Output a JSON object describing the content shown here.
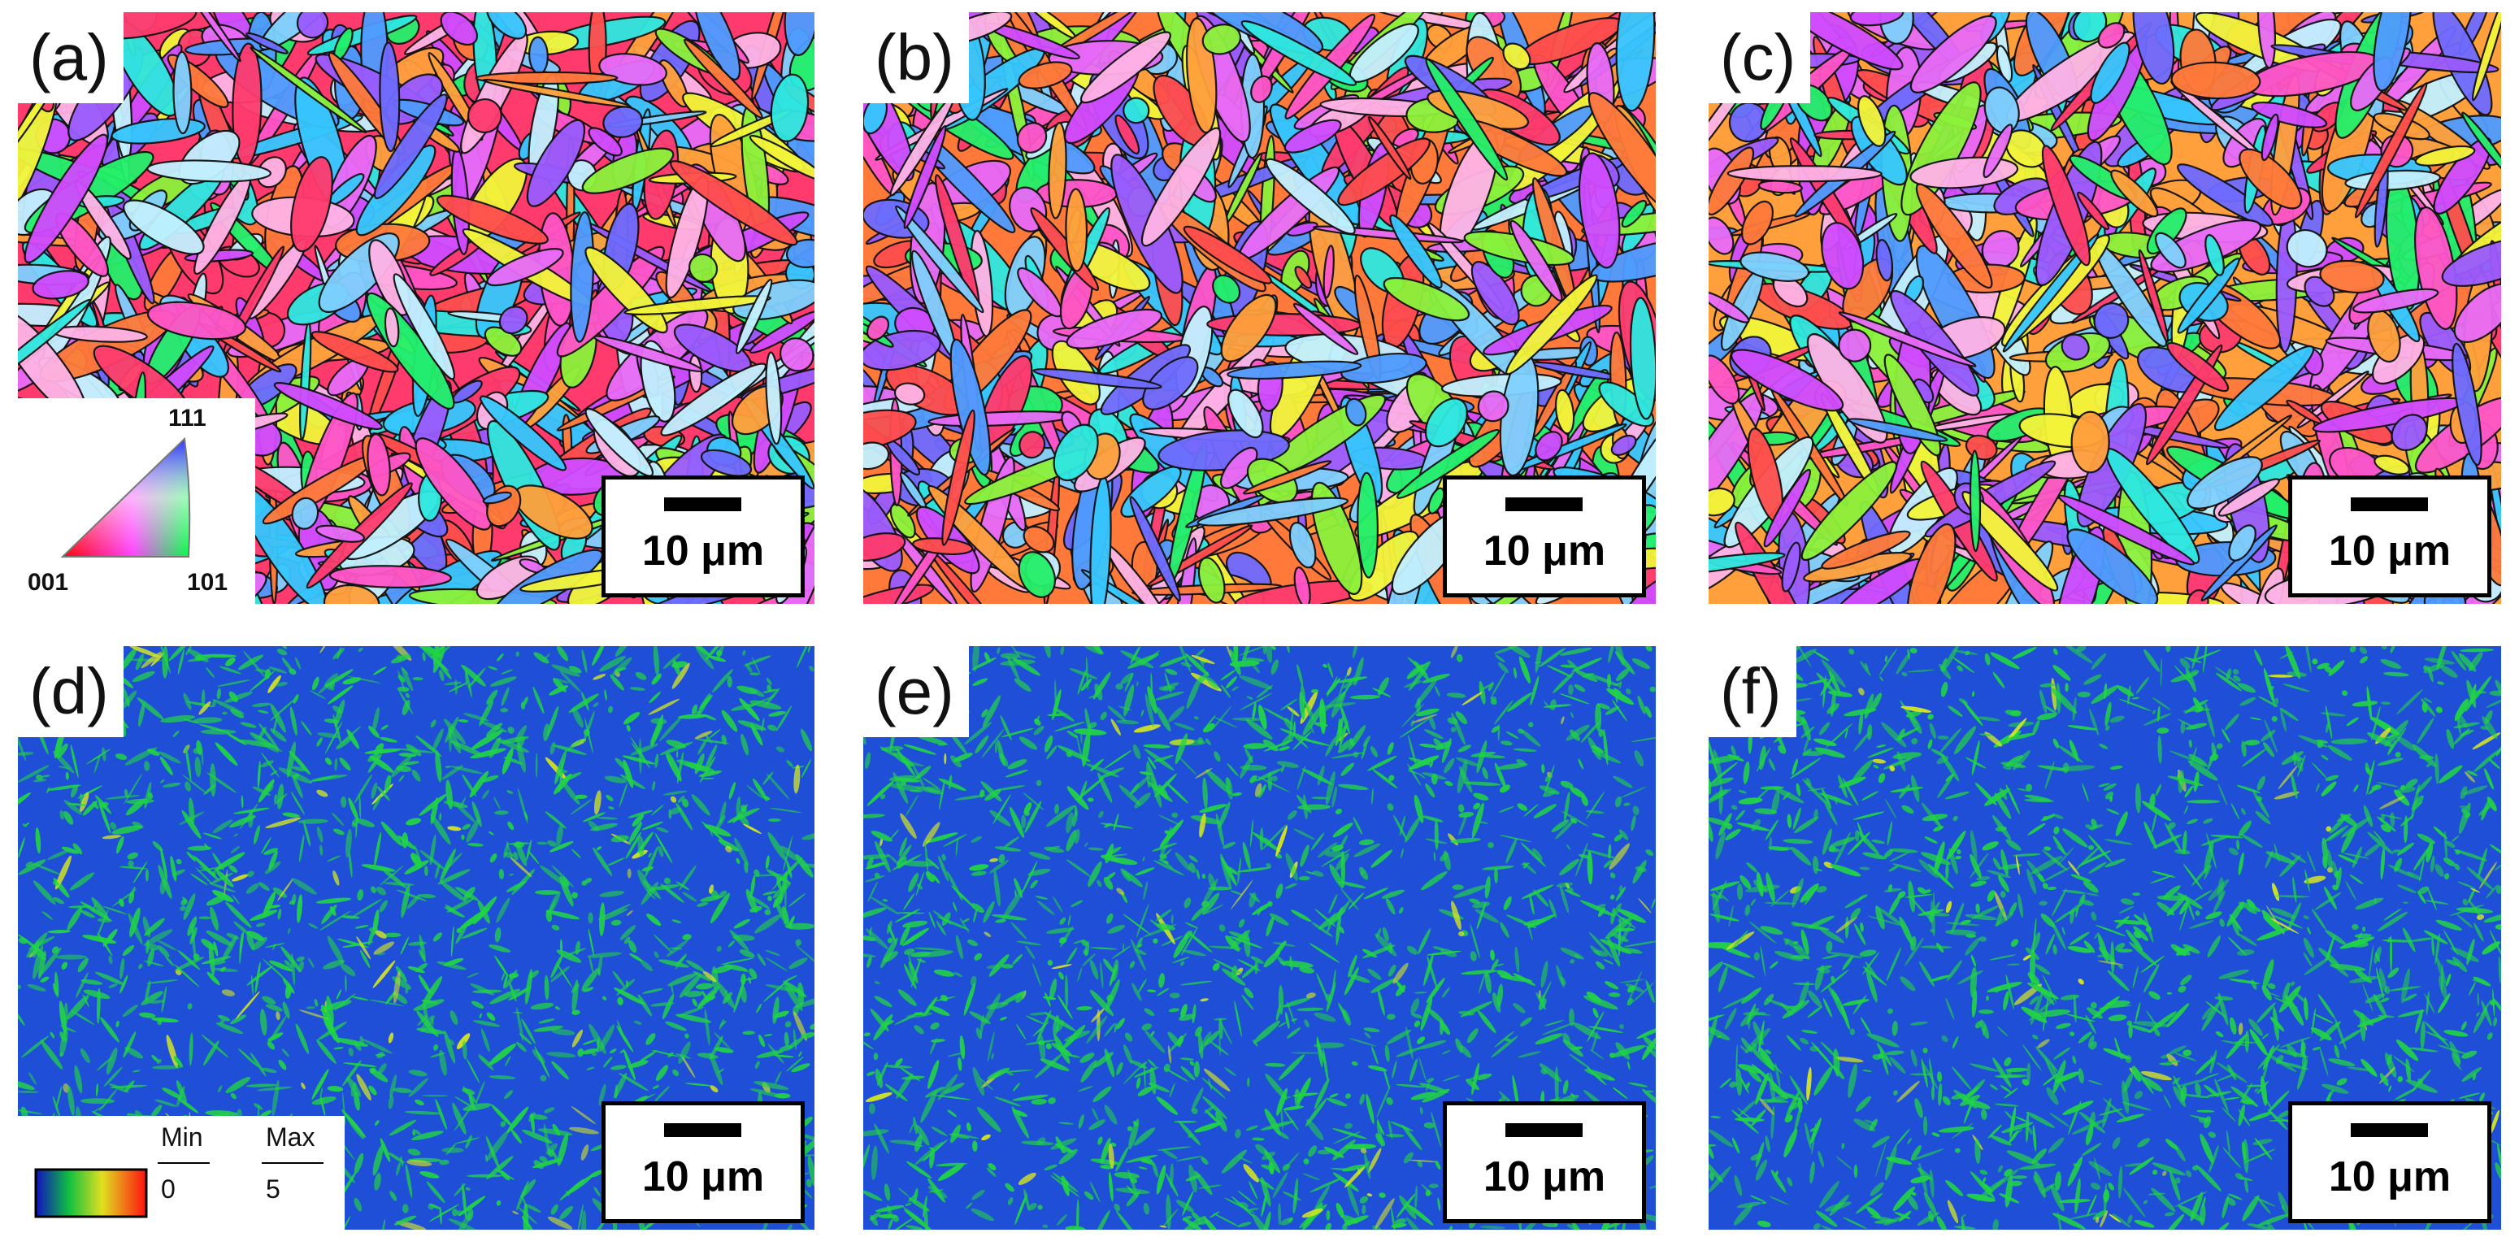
{
  "panels": [
    {
      "label": "(a)",
      "scale": "10 μm"
    },
    {
      "label": "(b)",
      "scale": "10 μm"
    },
    {
      "label": "(c)",
      "scale": "10 μm"
    },
    {
      "label": "(d)",
      "scale": "10 μm"
    },
    {
      "label": "(e)",
      "scale": "10 μm"
    },
    {
      "label": "(f)",
      "scale": "10 μm"
    }
  ],
  "ipf_legend": {
    "top": "111",
    "left": "001",
    "right": "101"
  },
  "kam_legend": {
    "min_title": "Min",
    "max_title": "Max",
    "min_value": "0",
    "max_value": "5"
  },
  "colors": {
    "ipf_palette": [
      "#ff3b6e",
      "#ff7a3a",
      "#ffa03c",
      "#ff55c8",
      "#d04bff",
      "#9a5bff",
      "#6e6bff",
      "#4f9bff",
      "#36c7ff",
      "#2ee8e0",
      "#23f06a",
      "#8cf23a",
      "#f3f53a",
      "#ff4d4d",
      "#e86bf7",
      "#ffb3e6",
      "#c2f0ff",
      "#7fd0ff"
    ],
    "kam_base": "#1f4fd6",
    "kam_green": "#21d445",
    "kam_yellow": "#d6e81f",
    "boundary": "#111111"
  }
}
